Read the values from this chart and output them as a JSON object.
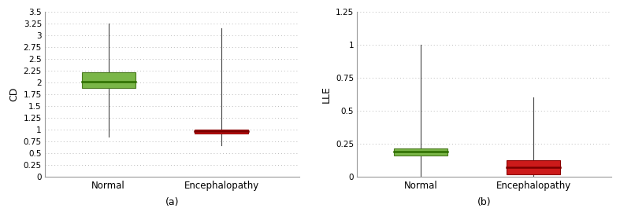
{
  "plot_a": {
    "ylabel": "CD",
    "xlabel": "(a)",
    "categories": [
      "Normal",
      "Encephalopathy"
    ],
    "boxes": [
      {
        "color": "#7ab648",
        "edge_color": "#4a7a20",
        "whisker_low": 0.85,
        "q1": 1.88,
        "median": 2.02,
        "q3": 2.22,
        "whisker_high": 3.25
      },
      {
        "color": "#cc1a1a",
        "edge_color": "#8b0000",
        "whisker_low": 0.68,
        "q1": 0.92,
        "median": 0.97,
        "q3": 1.01,
        "whisker_high": 3.15
      }
    ],
    "ylim": [
      0,
      3.5
    ],
    "yticks": [
      0,
      0.25,
      0.5,
      0.75,
      1.0,
      1.25,
      1.5,
      1.75,
      2.0,
      2.25,
      2.5,
      2.75,
      3.0,
      3.25,
      3.5
    ],
    "ytick_labels": [
      "0",
      "0.25",
      "0.5",
      "0.75",
      "1",
      "1.25",
      "1.5",
      "1.75",
      "2",
      "2.25",
      "2.5",
      "2.75",
      "3",
      "3.25",
      "3.5"
    ]
  },
  "plot_b": {
    "ylabel": "LLE",
    "xlabel": "(b)",
    "categories": [
      "Normal",
      "Encephalopathy"
    ],
    "boxes": [
      {
        "color": "#7ab648",
        "edge_color": "#4a7a20",
        "whisker_low": 0.0,
        "q1": 0.165,
        "median": 0.195,
        "q3": 0.215,
        "whisker_high": 1.0
      },
      {
        "color": "#cc1a1a",
        "edge_color": "#8b0000",
        "whisker_low": 0.0,
        "q1": 0.02,
        "median": 0.075,
        "q3": 0.13,
        "whisker_high": 0.6
      }
    ],
    "ylim": [
      0,
      1.25
    ],
    "yticks": [
      0,
      0.25,
      0.5,
      0.75,
      1.0,
      1.25
    ],
    "ytick_labels": [
      "0",
      "0.25",
      "0.5",
      "0.75",
      "1",
      "1.25"
    ]
  },
  "background_color": "#ffffff",
  "grid_color": "#bbbbbb",
  "whisker_color": "#444444",
  "median_color_green": "#2d6e00",
  "median_color_red": "#7a0000",
  "box_width": 0.38,
  "linewidth": 0.8,
  "x_positions": [
    1.0,
    1.8
  ],
  "xlim": [
    0.55,
    2.35
  ]
}
